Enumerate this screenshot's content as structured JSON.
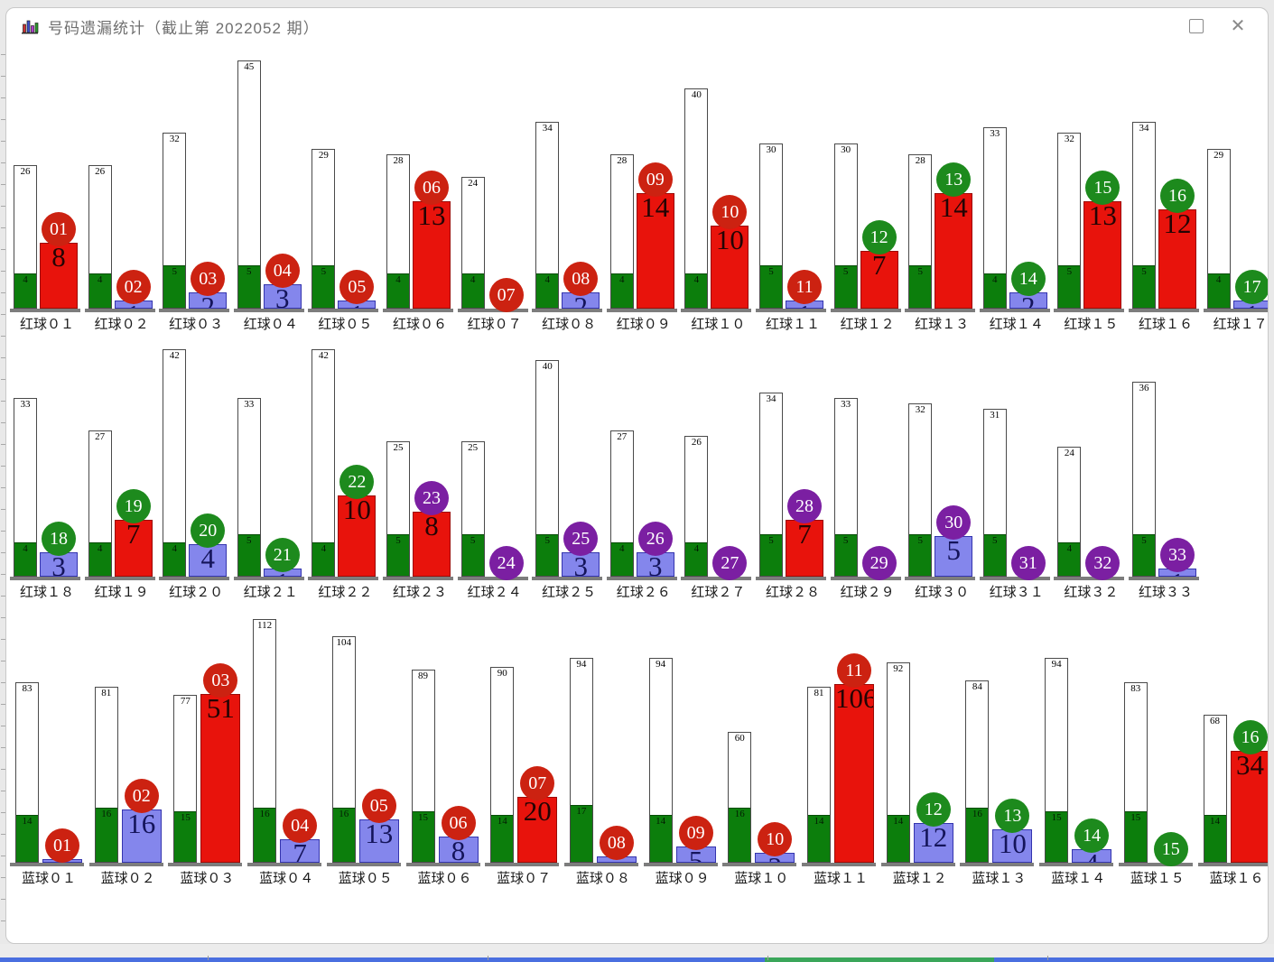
{
  "window": {
    "title": "号码遗漏统计（截止第 2022052 期）",
    "controls": {
      "maximize_label": "maximize",
      "close_glyph": "✕"
    }
  },
  "chart_data": {
    "type": "bar",
    "title": "号码遗漏统计（截止第 2022052 期）",
    "colors": {
      "red_bar": "#e8130c",
      "blue_bar": "#8486ec",
      "green_avg_bar": "#0c7e0c",
      "max_bar_fill": "#ffffff",
      "badge_red": "#cc2211",
      "badge_green": "#1d8a1d",
      "badge_purple": "#7b1fa2"
    },
    "rows": [
      {
        "name": "red-balls-01-17",
        "groups": [
          {
            "ball": "01",
            "label": "红球０１",
            "max": 26,
            "avg": 4,
            "current": 8,
            "bar": "red",
            "badge": "red"
          },
          {
            "ball": "02",
            "label": "红球０２",
            "max": 26,
            "avg": 4,
            "current": 1,
            "bar": "blue",
            "badge": "red"
          },
          {
            "ball": "03",
            "label": "红球０３",
            "max": 32,
            "avg": 5,
            "current": 2,
            "bar": "blue",
            "badge": "red"
          },
          {
            "ball": "04",
            "label": "红球０４",
            "max": 45,
            "avg": 5,
            "current": 3,
            "bar": "blue",
            "badge": "red"
          },
          {
            "ball": "05",
            "label": "红球０５",
            "max": 29,
            "avg": 5,
            "current": 1,
            "bar": "blue",
            "badge": "red"
          },
          {
            "ball": "06",
            "label": "红球０６",
            "max": 28,
            "avg": 4,
            "current": 13,
            "bar": "red",
            "badge": "red"
          },
          {
            "ball": "07",
            "label": "红球０７",
            "max": 24,
            "avg": 4,
            "current": 0,
            "bar": "none",
            "badge": "red"
          },
          {
            "ball": "08",
            "label": "红球０８",
            "max": 34,
            "avg": 4,
            "current": 2,
            "bar": "blue",
            "badge": "red"
          },
          {
            "ball": "09",
            "label": "红球０９",
            "max": 28,
            "avg": 4,
            "current": 14,
            "bar": "red",
            "badge": "red"
          },
          {
            "ball": "10",
            "label": "红球１０",
            "max": 40,
            "avg": 4,
            "current": 10,
            "bar": "red",
            "badge": "red"
          },
          {
            "ball": "11",
            "label": "红球１１",
            "max": 30,
            "avg": 5,
            "current": 1,
            "bar": "blue",
            "badge": "red"
          },
          {
            "ball": "12",
            "label": "红球１２",
            "max": 30,
            "avg": 5,
            "current": 7,
            "bar": "red",
            "badge": "green"
          },
          {
            "ball": "13",
            "label": "红球１３",
            "max": 28,
            "avg": 5,
            "current": 14,
            "bar": "red",
            "badge": "green"
          },
          {
            "ball": "14",
            "label": "红球１４",
            "max": 33,
            "avg": 4,
            "current": 2,
            "bar": "blue",
            "badge": "green"
          },
          {
            "ball": "15",
            "label": "红球１５",
            "max": 32,
            "avg": 5,
            "current": 13,
            "bar": "red",
            "badge": "green"
          },
          {
            "ball": "16",
            "label": "红球１６",
            "max": 34,
            "avg": 5,
            "current": 12,
            "bar": "red",
            "badge": "green"
          },
          {
            "ball": "17",
            "label": "红球１７",
            "max": 29,
            "avg": 4,
            "current": 1,
            "bar": "blue",
            "badge": "green"
          }
        ]
      },
      {
        "name": "red-balls-18-33",
        "groups": [
          {
            "ball": "18",
            "label": "红球１８",
            "max": 33,
            "avg": 4,
            "current": 3,
            "bar": "blue",
            "badge": "green"
          },
          {
            "ball": "19",
            "label": "红球１９",
            "max": 27,
            "avg": 4,
            "current": 7,
            "bar": "red",
            "badge": "green"
          },
          {
            "ball": "20",
            "label": "红球２０",
            "max": 42,
            "avg": 4,
            "current": 4,
            "bar": "blue",
            "badge": "green"
          },
          {
            "ball": "21",
            "label": "红球２１",
            "max": 33,
            "avg": 5,
            "current": 1,
            "bar": "blue",
            "badge": "green"
          },
          {
            "ball": "22",
            "label": "红球２２",
            "max": 42,
            "avg": 4,
            "current": 10,
            "bar": "red",
            "badge": "green"
          },
          {
            "ball": "23",
            "label": "红球２３",
            "max": 25,
            "avg": 5,
            "current": 8,
            "bar": "red",
            "badge": "purple"
          },
          {
            "ball": "24",
            "label": "红球２４",
            "max": 25,
            "avg": 5,
            "current": 0,
            "bar": "none",
            "badge": "purple"
          },
          {
            "ball": "25",
            "label": "红球２５",
            "max": 40,
            "avg": 5,
            "current": 3,
            "bar": "blue",
            "badge": "purple"
          },
          {
            "ball": "26",
            "label": "红球２６",
            "max": 27,
            "avg": 4,
            "current": 3,
            "bar": "blue",
            "badge": "purple"
          },
          {
            "ball": "27",
            "label": "红球２７",
            "max": 26,
            "avg": 4,
            "current": 0,
            "bar": "none",
            "badge": "purple"
          },
          {
            "ball": "28",
            "label": "红球２８",
            "max": 34,
            "avg": 5,
            "current": 7,
            "bar": "red",
            "badge": "purple"
          },
          {
            "ball": "29",
            "label": "红球２９",
            "max": 33,
            "avg": 5,
            "current": 0,
            "bar": "none",
            "badge": "purple"
          },
          {
            "ball": "30",
            "label": "红球３０",
            "max": 32,
            "avg": 5,
            "current": 5,
            "bar": "blue",
            "badge": "purple"
          },
          {
            "ball": "31",
            "label": "红球３１",
            "max": 31,
            "avg": 5,
            "current": 0,
            "bar": "none",
            "badge": "purple"
          },
          {
            "ball": "32",
            "label": "红球３２",
            "max": 24,
            "avg": 4,
            "current": 0,
            "bar": "none",
            "badge": "purple"
          },
          {
            "ball": "33",
            "label": "红球３３",
            "max": 36,
            "avg": 5,
            "current": 1,
            "bar": "blue",
            "badge": "purple"
          }
        ]
      },
      {
        "name": "blue-balls-01-16",
        "groups": [
          {
            "ball": "01",
            "label": "蓝球０１",
            "max": 83,
            "avg": 14,
            "current": 1,
            "bar": "blue",
            "badge": "red"
          },
          {
            "ball": "02",
            "label": "蓝球０２",
            "max": 81,
            "avg": 16,
            "current": 16,
            "bar": "blue",
            "badge": "red"
          },
          {
            "ball": "03",
            "label": "蓝球０３",
            "max": 77,
            "avg": 15,
            "current": 51,
            "bar": "red",
            "badge": "red"
          },
          {
            "ball": "04",
            "label": "蓝球０４",
            "max": 112,
            "avg": 16,
            "current": 7,
            "bar": "blue",
            "badge": "red"
          },
          {
            "ball": "05",
            "label": "蓝球０５",
            "max": 104,
            "avg": 16,
            "current": 13,
            "bar": "blue",
            "badge": "red"
          },
          {
            "ball": "06",
            "label": "蓝球０６",
            "max": 89,
            "avg": 15,
            "current": 8,
            "bar": "blue",
            "badge": "red"
          },
          {
            "ball": "07",
            "label": "蓝球０７",
            "max": 90,
            "avg": 14,
            "current": 20,
            "bar": "red",
            "badge": "red"
          },
          {
            "ball": "08",
            "label": "蓝球０８",
            "max": 94,
            "avg": 17,
            "current": 2,
            "bar": "blue",
            "badge": "red"
          },
          {
            "ball": "09",
            "label": "蓝球０９",
            "max": 94,
            "avg": 14,
            "current": 5,
            "bar": "blue",
            "badge": "red"
          },
          {
            "ball": "10",
            "label": "蓝球１０",
            "max": 60,
            "avg": 16,
            "current": 3,
            "bar": "blue",
            "badge": "red"
          },
          {
            "ball": "11",
            "label": "蓝球１１",
            "max": 81,
            "avg": 14,
            "current": 106,
            "bar": "red",
            "badge": "red"
          },
          {
            "ball": "12",
            "label": "蓝球１２",
            "max": 92,
            "avg": 14,
            "current": 12,
            "bar": "blue",
            "badge": "green"
          },
          {
            "ball": "13",
            "label": "蓝球１３",
            "max": 84,
            "avg": 16,
            "current": 10,
            "bar": "blue",
            "badge": "green"
          },
          {
            "ball": "14",
            "label": "蓝球１４",
            "max": 94,
            "avg": 15,
            "current": 4,
            "bar": "blue",
            "badge": "green"
          },
          {
            "ball": "15",
            "label": "蓝球１５",
            "max": 83,
            "avg": 15,
            "current": 0,
            "bar": "none",
            "badge": "green"
          },
          {
            "ball": "16",
            "label": "蓝球１６",
            "max": 68,
            "avg": 14,
            "current": 34,
            "bar": "red",
            "badge": "green"
          }
        ]
      }
    ]
  }
}
